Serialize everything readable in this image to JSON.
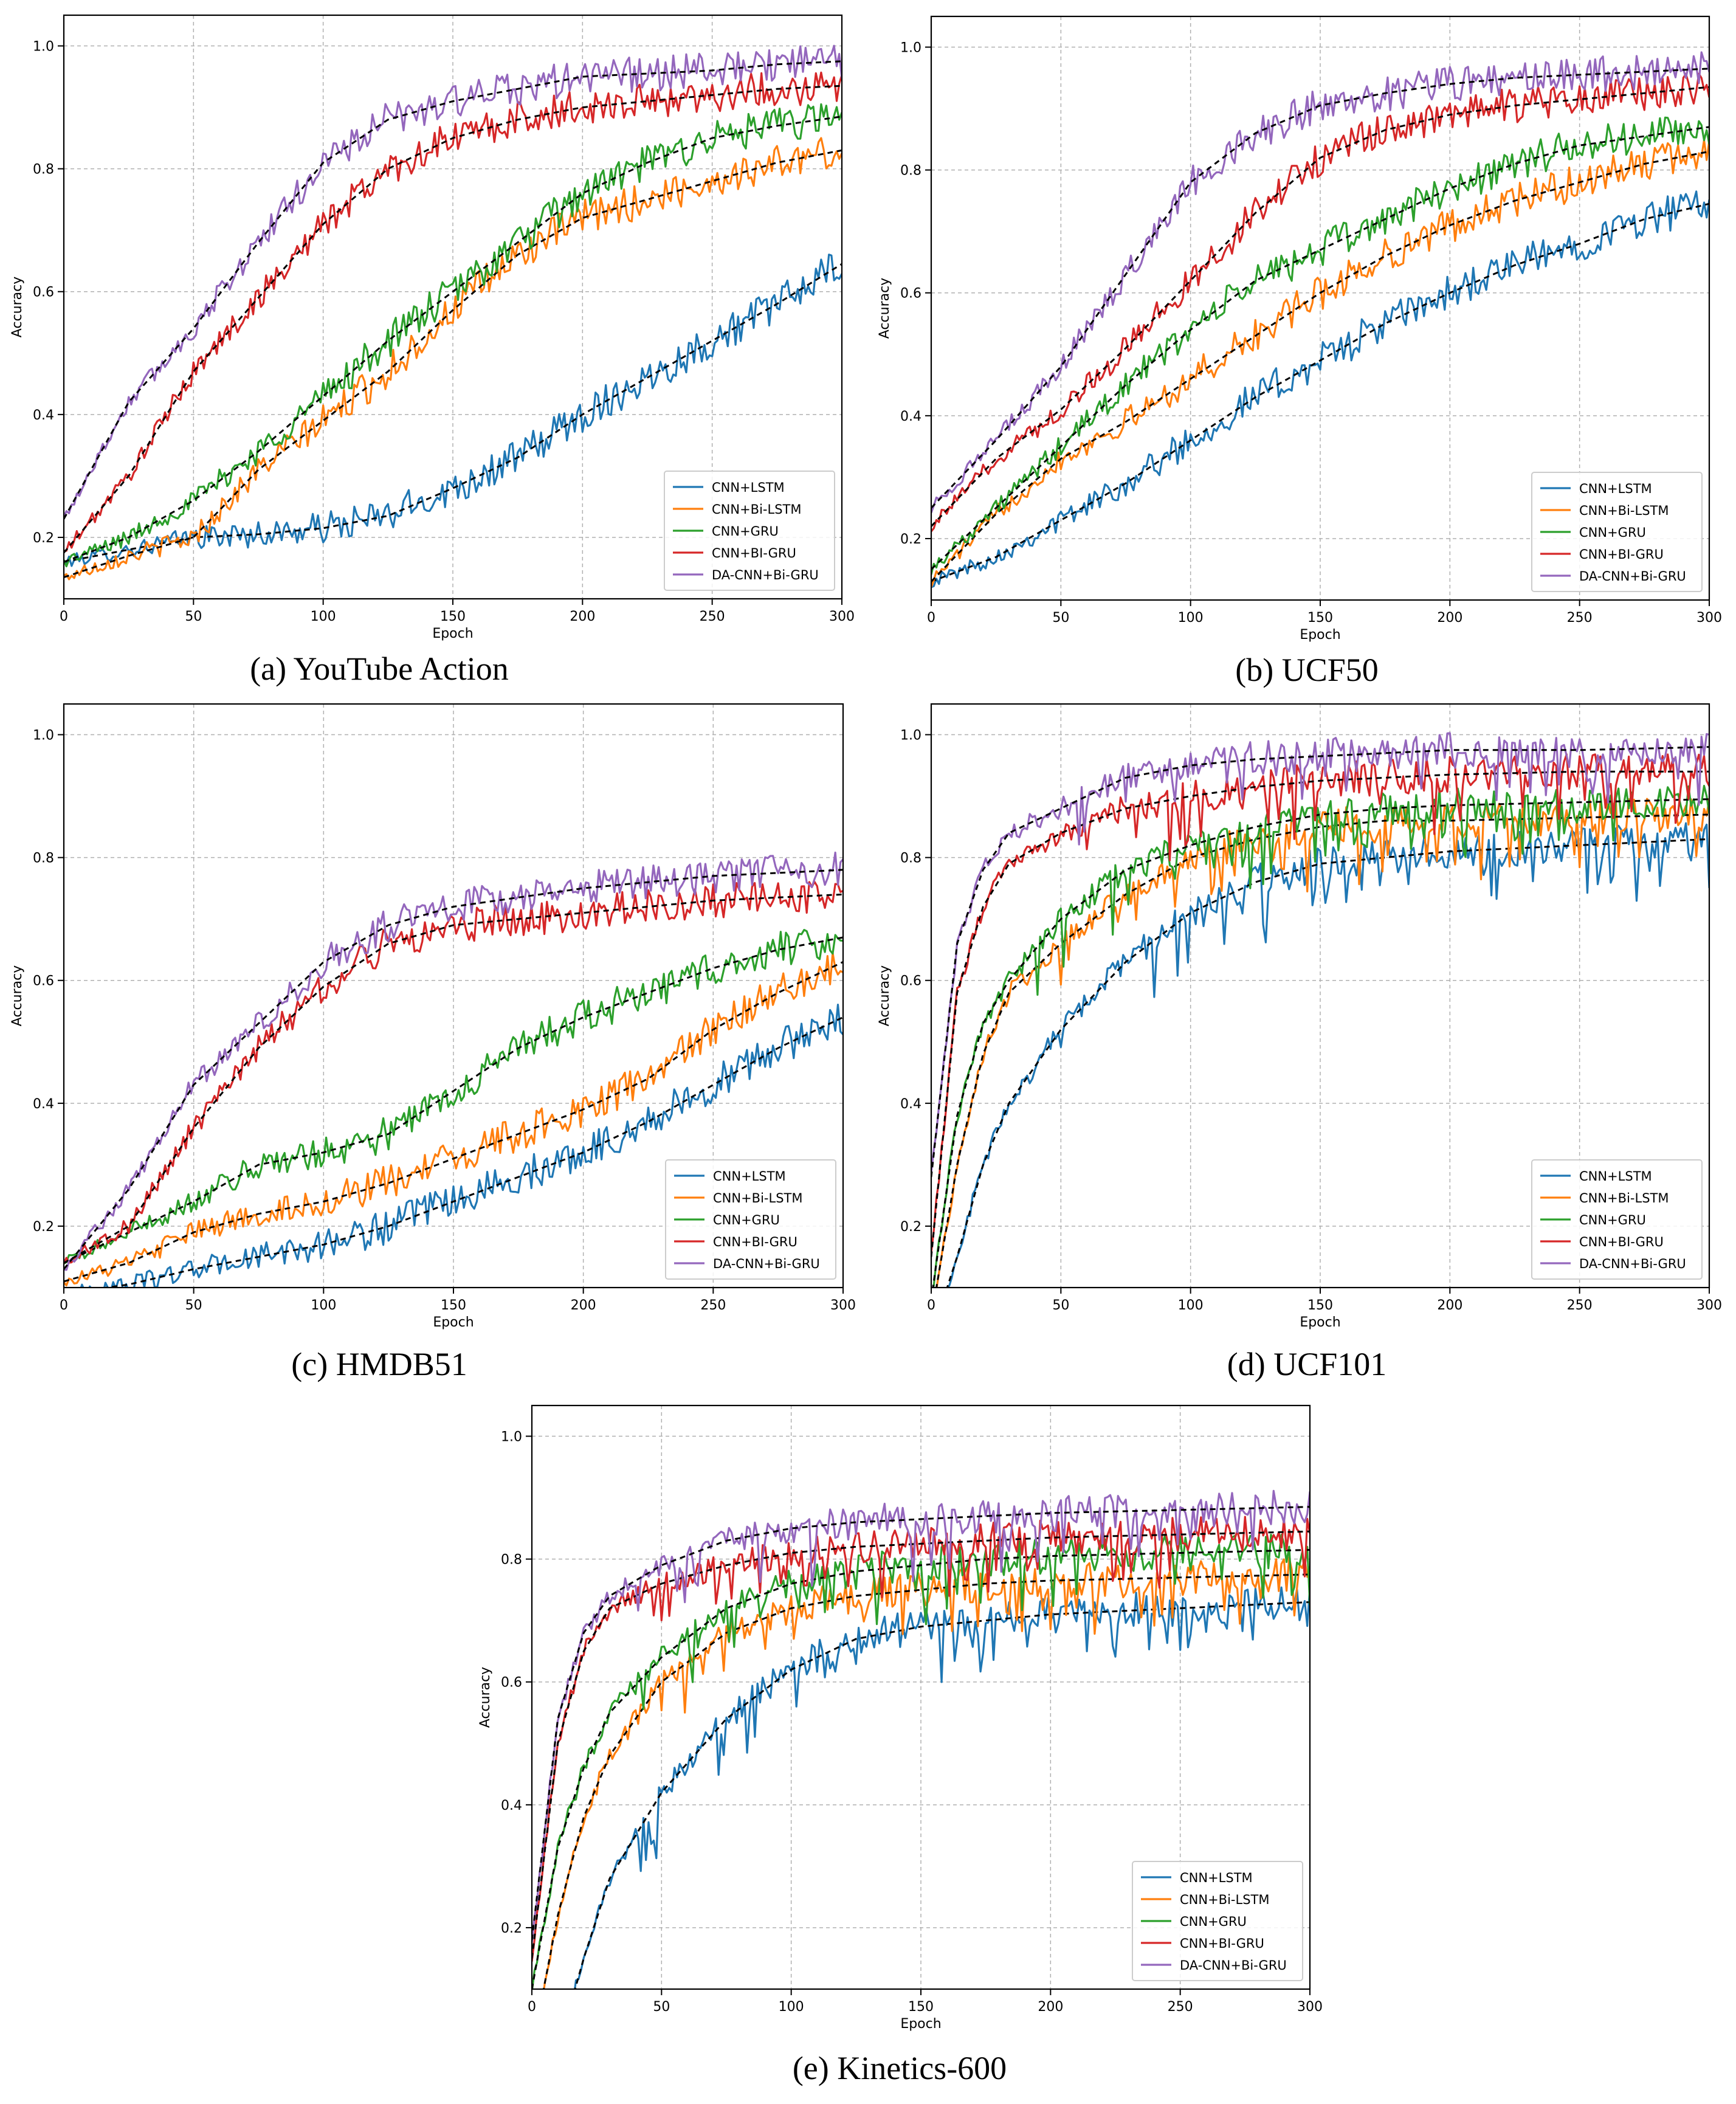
{
  "colors": {
    "CNN+LSTM": "#1f77b4",
    "CNN+Bi-LSTM": "#ff7f0e",
    "CNN+GRU": "#2ca02c",
    "CNN+BI-GRU": "#d62728",
    "DA-CNN+Bi-GRU": "#9467bd",
    "trend": "#000000",
    "grid": "#b0b0b0"
  },
  "chart_data": [
    {
      "type": "line",
      "caption": "(a) YouTube Action",
      "xlabel": "Epoch",
      "ylabel": "Accuracy",
      "xlim": [
        0,
        300
      ],
      "ylim": [
        0.1,
        1.05
      ],
      "xticks": [
        0,
        50,
        100,
        150,
        200,
        250,
        300
      ],
      "yticks": [
        0.2,
        0.4,
        0.6,
        0.8,
        1.0
      ],
      "grid": true,
      "legend_position": "lower-right",
      "trend_style": "black dashed",
      "series": [
        {
          "name": "CNN+LSTM",
          "x": [
            0,
            25,
            50,
            75,
            100,
            125,
            150,
            175,
            200,
            225,
            250,
            275,
            300
          ],
          "values": [
            0.16,
            0.18,
            0.2,
            0.205,
            0.215,
            0.235,
            0.28,
            0.33,
            0.4,
            0.46,
            0.52,
            0.58,
            0.645
          ]
        },
        {
          "name": "CNN+Bi-LSTM",
          "x": [
            0,
            25,
            50,
            75,
            100,
            125,
            150,
            175,
            200,
            225,
            250,
            275,
            300
          ],
          "values": [
            0.135,
            0.17,
            0.2,
            0.31,
            0.39,
            0.47,
            0.57,
            0.66,
            0.72,
            0.75,
            0.78,
            0.81,
            0.83
          ]
        },
        {
          "name": "CNN+GRU",
          "x": [
            0,
            25,
            50,
            75,
            100,
            125,
            150,
            175,
            200,
            225,
            250,
            275,
            300
          ],
          "values": [
            0.16,
            0.2,
            0.26,
            0.34,
            0.43,
            0.52,
            0.6,
            0.68,
            0.76,
            0.81,
            0.85,
            0.87,
            0.885
          ]
        },
        {
          "name": "CNN+BI-GRU",
          "x": [
            0,
            25,
            50,
            75,
            100,
            125,
            150,
            175,
            200,
            225,
            250,
            275,
            300
          ],
          "values": [
            0.175,
            0.3,
            0.47,
            0.59,
            0.71,
            0.8,
            0.85,
            0.88,
            0.9,
            0.91,
            0.92,
            0.93,
            0.935
          ]
        },
        {
          "name": "DA-CNN+Bi-GRU",
          "x": [
            0,
            25,
            50,
            75,
            100,
            125,
            150,
            175,
            200,
            225,
            250,
            275,
            300
          ],
          "values": [
            0.23,
            0.42,
            0.54,
            0.68,
            0.81,
            0.88,
            0.91,
            0.93,
            0.95,
            0.955,
            0.96,
            0.97,
            0.975
          ]
        }
      ]
    },
    {
      "type": "line",
      "caption": "(b) UCF50",
      "xlabel": "Epoch",
      "ylabel": "Accuracy",
      "xlim": [
        0,
        300
      ],
      "ylim": [
        0.1,
        1.05
      ],
      "xticks": [
        0,
        50,
        100,
        150,
        200,
        250,
        300
      ],
      "yticks": [
        0.2,
        0.4,
        0.6,
        0.8,
        1.0
      ],
      "grid": true,
      "legend_position": "lower-right",
      "trend_style": "black dashed",
      "series": [
        {
          "name": "CNN+LSTM",
          "x": [
            0,
            25,
            50,
            75,
            100,
            125,
            150,
            175,
            200,
            225,
            250,
            275,
            300
          ],
          "values": [
            0.13,
            0.17,
            0.23,
            0.29,
            0.36,
            0.43,
            0.49,
            0.55,
            0.6,
            0.645,
            0.68,
            0.72,
            0.745
          ]
        },
        {
          "name": "CNN+Bi-LSTM",
          "x": [
            0,
            25,
            50,
            75,
            100,
            125,
            150,
            175,
            200,
            225,
            250,
            275,
            300
          ],
          "values": [
            0.13,
            0.24,
            0.33,
            0.39,
            0.46,
            0.53,
            0.6,
            0.66,
            0.71,
            0.75,
            0.78,
            0.81,
            0.83
          ]
        },
        {
          "name": "CNN+GRU",
          "x": [
            0,
            25,
            50,
            75,
            100,
            125,
            150,
            175,
            200,
            225,
            250,
            275,
            300
          ],
          "values": [
            0.15,
            0.25,
            0.35,
            0.45,
            0.54,
            0.62,
            0.67,
            0.72,
            0.77,
            0.81,
            0.84,
            0.855,
            0.87
          ]
        },
        {
          "name": "CNN+BI-GRU",
          "x": [
            0,
            25,
            50,
            75,
            100,
            125,
            150,
            175,
            200,
            225,
            250,
            275,
            300
          ],
          "values": [
            0.22,
            0.33,
            0.41,
            0.51,
            0.62,
            0.73,
            0.82,
            0.865,
            0.89,
            0.905,
            0.915,
            0.925,
            0.935
          ]
        },
        {
          "name": "DA-CNN+Bi-GRU",
          "x": [
            0,
            25,
            50,
            75,
            100,
            125,
            150,
            175,
            200,
            225,
            250,
            275,
            300
          ],
          "values": [
            0.25,
            0.36,
            0.48,
            0.63,
            0.78,
            0.86,
            0.905,
            0.925,
            0.94,
            0.95,
            0.955,
            0.96,
            0.965
          ]
        }
      ]
    },
    {
      "type": "line",
      "caption": "(c) HMDB51",
      "xlabel": "Epoch",
      "ylabel": "Accuracy",
      "xlim": [
        0,
        300
      ],
      "ylim": [
        0.1,
        1.05
      ],
      "xticks": [
        0,
        50,
        100,
        150,
        200,
        250,
        300
      ],
      "yticks": [
        0.2,
        0.4,
        0.6,
        0.8,
        1.0
      ],
      "grid": true,
      "legend_position": "lower-right",
      "trend_style": "black dashed",
      "series": [
        {
          "name": "CNN+LSTM",
          "x": [
            0,
            25,
            50,
            75,
            100,
            125,
            150,
            175,
            200,
            225,
            250,
            275,
            300
          ],
          "values": [
            0.09,
            0.105,
            0.13,
            0.15,
            0.17,
            0.2,
            0.24,
            0.28,
            0.32,
            0.37,
            0.43,
            0.49,
            0.54
          ]
        },
        {
          "name": "CNN+Bi-LSTM",
          "x": [
            0,
            25,
            50,
            75,
            100,
            125,
            150,
            175,
            200,
            225,
            250,
            275,
            300
          ],
          "values": [
            0.11,
            0.14,
            0.19,
            0.22,
            0.24,
            0.27,
            0.31,
            0.35,
            0.39,
            0.44,
            0.52,
            0.58,
            0.63
          ]
        },
        {
          "name": "CNN+GRU",
          "x": [
            0,
            25,
            50,
            75,
            100,
            125,
            150,
            175,
            200,
            225,
            250,
            275,
            300
          ],
          "values": [
            0.14,
            0.19,
            0.24,
            0.3,
            0.32,
            0.35,
            0.42,
            0.49,
            0.54,
            0.58,
            0.62,
            0.65,
            0.67
          ]
        },
        {
          "name": "CNN+BI-GRU",
          "x": [
            0,
            25,
            50,
            75,
            100,
            125,
            150,
            175,
            200,
            225,
            250,
            275,
            300
          ],
          "values": [
            0.14,
            0.2,
            0.36,
            0.49,
            0.59,
            0.66,
            0.69,
            0.7,
            0.71,
            0.72,
            0.73,
            0.735,
            0.74
          ]
        },
        {
          "name": "DA-CNN+Bi-GRU",
          "x": [
            0,
            25,
            50,
            75,
            100,
            125,
            150,
            175,
            200,
            225,
            250,
            275,
            300
          ],
          "values": [
            0.13,
            0.26,
            0.43,
            0.53,
            0.63,
            0.69,
            0.72,
            0.735,
            0.75,
            0.76,
            0.77,
            0.775,
            0.78
          ]
        }
      ]
    },
    {
      "type": "line",
      "caption": "(d) UCF101",
      "xlabel": "Epoch",
      "ylabel": "Accuracy",
      "xlim": [
        0,
        300
      ],
      "ylim": [
        0.1,
        1.05
      ],
      "xticks": [
        0,
        50,
        100,
        150,
        200,
        250,
        300
      ],
      "yticks": [
        0.2,
        0.4,
        0.6,
        0.8,
        1.0
      ],
      "grid": true,
      "legend_position": "lower-right",
      "trend_style": "black dashed",
      "series": [
        {
          "name": "CNN+LSTM",
          "x": [
            0,
            10,
            20,
            30,
            50,
            75,
            100,
            125,
            150,
            175,
            200,
            250,
            300
          ],
          "values": [
            0.02,
            0.15,
            0.3,
            0.4,
            0.52,
            0.63,
            0.71,
            0.76,
            0.79,
            0.8,
            0.81,
            0.82,
            0.83
          ]
        },
        {
          "name": "CNN+Bi-LSTM",
          "x": [
            0,
            10,
            20,
            30,
            50,
            75,
            100,
            125,
            150,
            175,
            200,
            250,
            300
          ],
          "values": [
            0.05,
            0.3,
            0.48,
            0.58,
            0.66,
            0.74,
            0.8,
            0.83,
            0.85,
            0.86,
            0.86,
            0.865,
            0.87
          ]
        },
        {
          "name": "CNN+GRU",
          "x": [
            0,
            10,
            20,
            30,
            50,
            75,
            100,
            125,
            150,
            175,
            200,
            250,
            300
          ],
          "values": [
            0.08,
            0.38,
            0.53,
            0.6,
            0.7,
            0.78,
            0.82,
            0.85,
            0.87,
            0.88,
            0.885,
            0.89,
            0.895
          ]
        },
        {
          "name": "CNN+BI-GRU",
          "x": [
            0,
            10,
            20,
            30,
            50,
            75,
            100,
            125,
            150,
            175,
            200,
            250,
            300
          ],
          "values": [
            0.15,
            0.58,
            0.72,
            0.79,
            0.84,
            0.88,
            0.9,
            0.915,
            0.925,
            0.93,
            0.935,
            0.94,
            0.94
          ]
        },
        {
          "name": "DA-CNN+Bi-GRU",
          "x": [
            0,
            10,
            20,
            30,
            50,
            75,
            100,
            125,
            150,
            175,
            200,
            250,
            300
          ],
          "values": [
            0.28,
            0.66,
            0.78,
            0.84,
            0.88,
            0.93,
            0.95,
            0.96,
            0.965,
            0.97,
            0.975,
            0.975,
            0.98
          ]
        }
      ]
    },
    {
      "type": "line",
      "caption": "(e) Kinetics-600",
      "xlabel": "Epoch",
      "ylabel": "Accuracy",
      "xlim": [
        0,
        300
      ],
      "ylim": [
        0.1,
        1.05
      ],
      "xticks": [
        0,
        50,
        100,
        150,
        200,
        250,
        300
      ],
      "yticks": [
        0.2,
        0.4,
        0.6,
        0.8,
        1.0
      ],
      "grid": true,
      "legend_position": "lower-right",
      "trend_style": "black dashed",
      "series": [
        {
          "name": "CNN+LSTM",
          "x": [
            0,
            10,
            20,
            30,
            50,
            75,
            100,
            125,
            150,
            175,
            200,
            250,
            300
          ],
          "values": [
            -0.1,
            0.0,
            0.15,
            0.28,
            0.42,
            0.54,
            0.62,
            0.67,
            0.69,
            0.7,
            0.71,
            0.72,
            0.73
          ]
        },
        {
          "name": "CNN+Bi-LSTM",
          "x": [
            0,
            10,
            20,
            30,
            50,
            75,
            100,
            125,
            150,
            175,
            200,
            250,
            300
          ],
          "values": [
            0.0,
            0.22,
            0.38,
            0.48,
            0.6,
            0.68,
            0.72,
            0.74,
            0.75,
            0.76,
            0.765,
            0.77,
            0.775
          ]
        },
        {
          "name": "CNN+GRU",
          "x": [
            0,
            10,
            20,
            30,
            50,
            75,
            100,
            125,
            150,
            175,
            200,
            250,
            300
          ],
          "values": [
            0.1,
            0.33,
            0.46,
            0.55,
            0.64,
            0.72,
            0.76,
            0.78,
            0.79,
            0.8,
            0.805,
            0.81,
            0.815
          ]
        },
        {
          "name": "CNN+BI-GRU",
          "x": [
            0,
            10,
            20,
            30,
            50,
            75,
            100,
            125,
            150,
            175,
            200,
            250,
            300
          ],
          "values": [
            0.15,
            0.5,
            0.65,
            0.72,
            0.76,
            0.79,
            0.81,
            0.82,
            0.825,
            0.83,
            0.835,
            0.84,
            0.845
          ]
        },
        {
          "name": "DA-CNN+Bi-GRU",
          "x": [
            0,
            10,
            20,
            30,
            50,
            75,
            100,
            125,
            150,
            175,
            200,
            250,
            300
          ],
          "values": [
            0.18,
            0.54,
            0.68,
            0.74,
            0.79,
            0.83,
            0.85,
            0.86,
            0.865,
            0.87,
            0.875,
            0.88,
            0.885
          ]
        }
      ]
    }
  ]
}
